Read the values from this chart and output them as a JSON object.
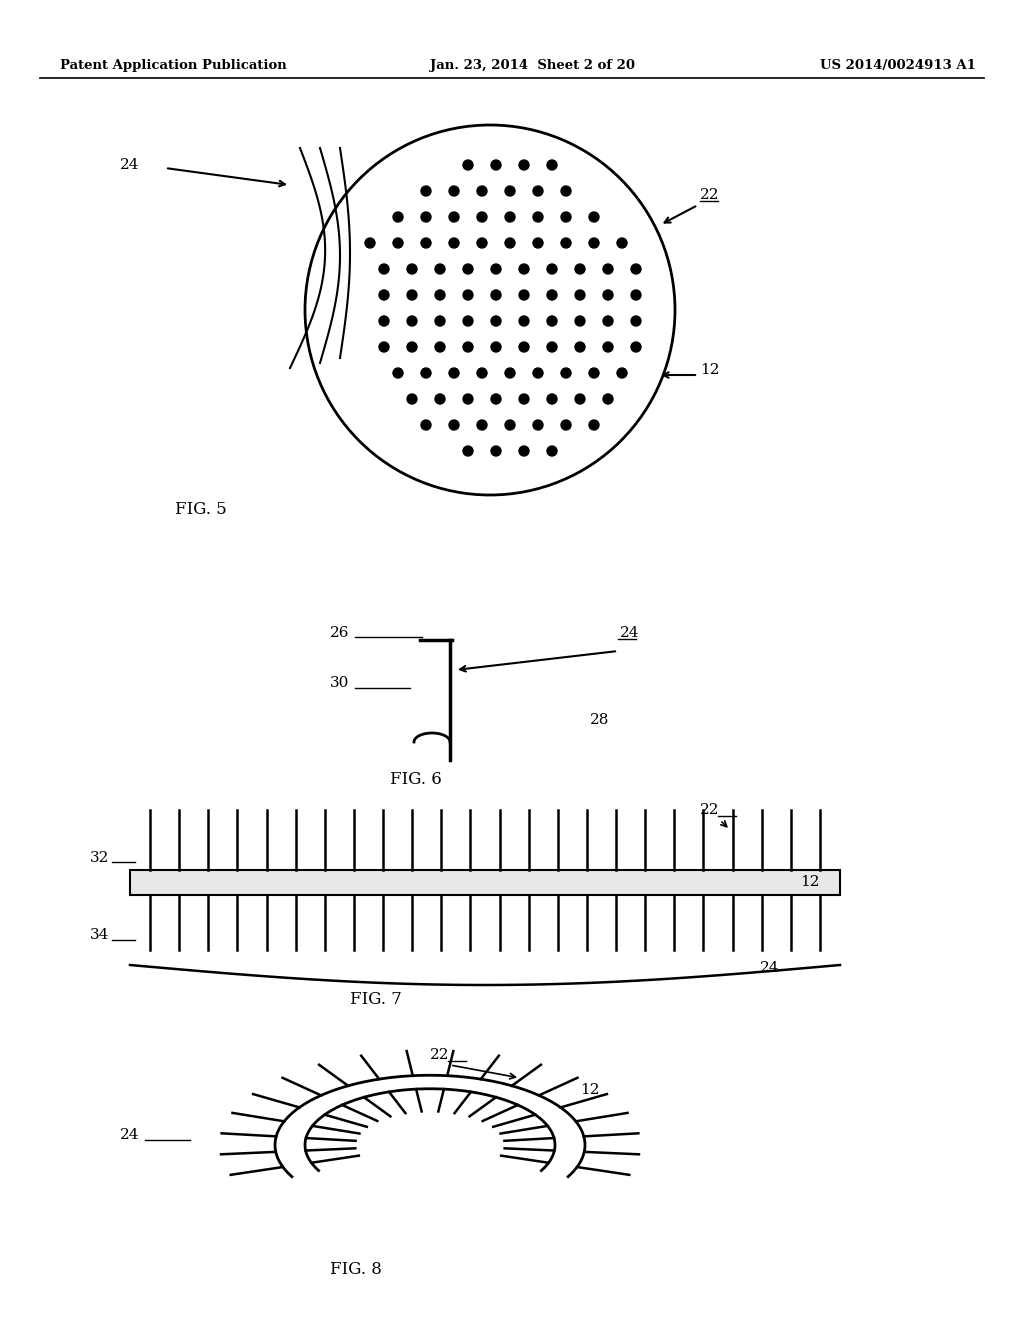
{
  "header_left": "Patent Application Publication",
  "header_mid": "Jan. 23, 2014  Sheet 2 of 20",
  "header_right": "US 2014/0024913 A1",
  "bg_color": "#ffffff",
  "line_color": "#000000",
  "fig5_label": "FIG. 5",
  "fig6_label": "FIG. 6",
  "fig7_label": "FIG. 7",
  "fig8_label": "FIG. 8"
}
